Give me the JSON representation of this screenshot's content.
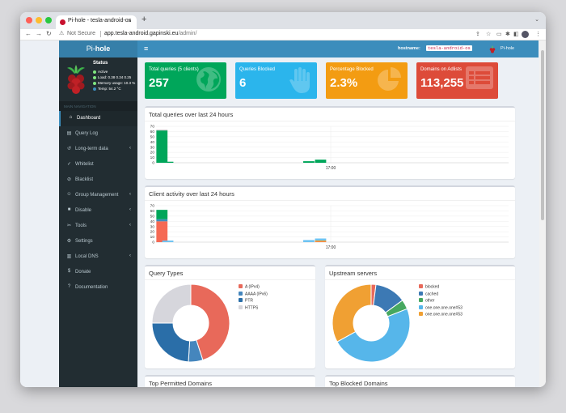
{
  "browser": {
    "tab_title": "Pi-hole - tesla-android-os",
    "tab_close": "×",
    "new_tab": "+",
    "tab_menu": "⌄",
    "not_secure": "Not Secure",
    "url_host": "app.tesla-android.gapinski.eu",
    "url_path": "/admin/"
  },
  "sidebar": {
    "logo_pre": "Pi-",
    "logo_bold": "hole",
    "status_title": "Status",
    "status": [
      {
        "text": "Active",
        "color": "#7fe57f"
      },
      {
        "text": "Load:  0.38  0.34  0.25",
        "color": "#7fe57f"
      },
      {
        "text": "Memory usage:  10.3 %",
        "color": "#7fe57f"
      },
      {
        "text": "Temp: 54.2 °C",
        "color": "#3c8dbc"
      }
    ],
    "nav_header": "MAIN NAVIGATION",
    "items": [
      {
        "label": "Dashboard",
        "icon": "home-icon",
        "glyph": "⌂",
        "chevron": ""
      },
      {
        "label": "Query Log",
        "icon": "file-icon",
        "glyph": "▤",
        "chevron": ""
      },
      {
        "label": "Long-term data",
        "icon": "history-icon",
        "glyph": "↺",
        "chevron": "‹"
      },
      {
        "label": "Whitelist",
        "icon": "check-circle-icon",
        "glyph": "✓",
        "chevron": ""
      },
      {
        "label": "Blacklist",
        "icon": "ban-icon",
        "glyph": "⊘",
        "chevron": ""
      },
      {
        "label": "Group Management",
        "icon": "users-icon",
        "glyph": "☺",
        "chevron": "‹"
      },
      {
        "label": "Disable",
        "icon": "stop-icon",
        "glyph": "■",
        "chevron": "‹"
      },
      {
        "label": "Tools",
        "icon": "tools-icon",
        "glyph": "✂",
        "chevron": "‹"
      },
      {
        "label": "Settings",
        "icon": "gear-icon",
        "glyph": "⚙",
        "chevron": ""
      },
      {
        "label": "Local DNS",
        "icon": "address-book-icon",
        "glyph": "▥",
        "chevron": "‹"
      },
      {
        "label": "Donate",
        "icon": "donate-icon",
        "glyph": "$",
        "chevron": ""
      },
      {
        "label": "Documentation",
        "icon": "question-icon",
        "glyph": "?",
        "chevron": ""
      }
    ]
  },
  "topnav": {
    "hamburger": "≡",
    "hostname_label": "hostname:",
    "hostname_value": "tesla-android-os",
    "user": "Pi-hole"
  },
  "stats": {
    "total": {
      "label": "Total queries (5 clients)",
      "value": "257",
      "icon": "globe-icon",
      "color": "#00a65a"
    },
    "blocked": {
      "label": "Queries Blocked",
      "value": "6",
      "icon": "hand-icon",
      "color": "#2bb5ec"
    },
    "percent": {
      "label": "Percentage Blocked",
      "value": "2.3%",
      "icon": "pie-chart-icon",
      "color": "#f39c12"
    },
    "adlist": {
      "label": "Domains on Adlists",
      "value": "113,255",
      "icon": "list-icon",
      "color": "#dd4b39"
    }
  },
  "panels": {
    "queries_title": "Total queries over last 24 hours",
    "clients_title": "Client activity over last 24 hours",
    "types_title": "Query Types",
    "upstream_title": "Upstream servers",
    "permitted_title": "Top Permitted Domains",
    "blocked_title": "Top Blocked Domains"
  },
  "chart_data": [
    {
      "type": "bar",
      "title": "Total queries over last 24 hours",
      "ylim": [
        0,
        70
      ],
      "yticks": [
        "70",
        "60",
        "50",
        "40",
        "30",
        "20",
        "10",
        "0"
      ],
      "xtick": "17:00",
      "series": [
        {
          "color": "#00a65a",
          "values": [
            62,
            2,
            0,
            0,
            0,
            0,
            0,
            0,
            0,
            0,
            0,
            0,
            0,
            0,
            0,
            0,
            0,
            0,
            0,
            0,
            0,
            0,
            0,
            0,
            0,
            3,
            0,
            6,
            0,
            0,
            0,
            0,
            0,
            0,
            0,
            0,
            0,
            0,
            0,
            0,
            0,
            0,
            0,
            0,
            0,
            0,
            0,
            0,
            0,
            0,
            0,
            0,
            0,
            0,
            0,
            0,
            0,
            0,
            0,
            0
          ]
        },
        {
          "color": "#999999",
          "values": [
            1,
            0,
            0,
            0,
            0,
            0,
            0,
            0,
            0,
            0,
            0,
            0,
            0,
            0,
            0,
            0,
            0,
            0,
            0,
            0,
            0,
            0,
            0,
            0,
            0,
            0,
            0,
            0,
            0,
            0,
            0,
            0,
            0,
            0,
            0,
            0,
            0,
            0,
            0,
            0,
            0,
            0,
            0,
            0,
            0,
            0,
            0,
            0,
            0,
            0,
            0,
            0,
            0,
            0,
            0,
            0,
            0,
            0,
            0,
            0
          ]
        }
      ]
    },
    {
      "type": "bar",
      "title": "Client activity over last 24 hours",
      "ylim": [
        0,
        70
      ],
      "yticks": [
        "70",
        "60",
        "50",
        "40",
        "30",
        "20",
        "10",
        "0"
      ],
      "xtick": "17:00",
      "series": [
        {
          "color": "#f56954",
          "values": [
            40,
            0,
            0,
            0,
            0,
            0,
            0,
            0,
            0,
            0,
            0,
            0,
            0,
            0,
            0,
            0,
            0,
            0,
            0,
            0,
            0,
            0,
            0,
            0,
            0,
            0,
            0,
            1,
            0,
            0,
            0,
            0,
            0,
            0,
            0,
            0,
            0,
            0,
            0,
            0,
            0,
            0,
            0,
            0,
            0,
            0,
            0,
            0,
            0,
            0,
            0,
            0,
            0,
            0,
            0,
            0,
            0,
            0,
            0,
            0
          ]
        },
        {
          "color": "#3c8dbc",
          "values": [
            4,
            0,
            0,
            0,
            0,
            0,
            0,
            0,
            0,
            0,
            0,
            0,
            0,
            0,
            0,
            0,
            0,
            0,
            0,
            0,
            0,
            0,
            0,
            0,
            0,
            0,
            0,
            0,
            0,
            0,
            0,
            0,
            0,
            0,
            0,
            0,
            0,
            0,
            0,
            0,
            0,
            0,
            0,
            0,
            0,
            0,
            0,
            0,
            0,
            0,
            0,
            0,
            0,
            0,
            0,
            0,
            0,
            0,
            0,
            0
          ]
        },
        {
          "color": "#00a65a",
          "values": [
            18,
            0,
            0,
            0,
            0,
            0,
            0,
            0,
            0,
            0,
            0,
            0,
            0,
            0,
            0,
            0,
            0,
            0,
            0,
            0,
            0,
            0,
            0,
            0,
            0,
            0,
            0,
            0,
            0,
            0,
            0,
            0,
            0,
            0,
            0,
            0,
            0,
            0,
            0,
            0,
            0,
            0,
            0,
            0,
            0,
            0,
            0,
            0,
            0,
            0,
            0,
            0,
            0,
            0,
            0,
            0,
            0,
            0,
            0,
            0
          ]
        },
        {
          "color": "#f39c12",
          "values": [
            0,
            0,
            0,
            0,
            0,
            0,
            0,
            0,
            0,
            0,
            0,
            0,
            0,
            0,
            0,
            0,
            0,
            0,
            0,
            0,
            0,
            0,
            0,
            0,
            0,
            0,
            0,
            2,
            0,
            0,
            0,
            0,
            0,
            0,
            0,
            0,
            0,
            0,
            0,
            0,
            0,
            0,
            0,
            0,
            0,
            0,
            0,
            0,
            0,
            0,
            0,
            0,
            0,
            0,
            0,
            0,
            0,
            0,
            0,
            0
          ]
        },
        {
          "color": "#6ec3f2",
          "values": [
            0,
            3,
            0,
            0,
            0,
            0,
            0,
            0,
            0,
            0,
            0,
            0,
            0,
            0,
            0,
            0,
            0,
            0,
            0,
            0,
            0,
            0,
            0,
            0,
            0,
            4,
            0,
            4,
            0,
            0,
            0,
            0,
            0,
            0,
            0,
            0,
            0,
            0,
            0,
            0,
            0,
            0,
            0,
            0,
            0,
            0,
            0,
            0,
            0,
            0,
            0,
            0,
            0,
            0,
            0,
            0,
            0,
            0,
            0,
            0
          ]
        }
      ]
    },
    {
      "type": "pie",
      "title": "Query Types",
      "labels": [
        "A (IPv4)",
        "AAAA (IPv6)",
        "PTR",
        "HTTPS"
      ],
      "values": [
        45,
        6,
        24,
        25
      ],
      "colors": [
        "#e8695a",
        "#4586bd",
        "#2a6ea8",
        "#d6d6dc"
      ]
    },
    {
      "type": "pie",
      "title": "Upstream servers",
      "labels": [
        "blocked",
        "cached",
        "other",
        "one.one.one.one#53",
        "one.one.one.one#53"
      ],
      "values": [
        2,
        13,
        4,
        48,
        33
      ],
      "colors": [
        "#e8695a",
        "#3c79b4",
        "#46a860",
        "#56b6ea",
        "#f0a033"
      ]
    }
  ]
}
